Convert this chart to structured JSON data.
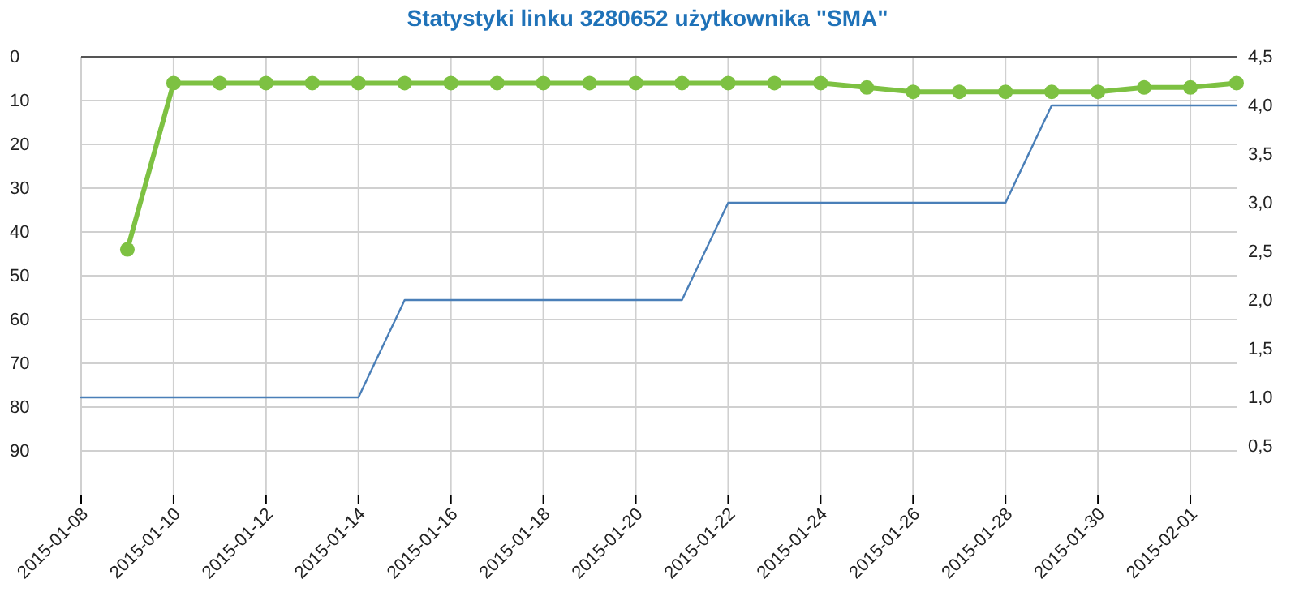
{
  "chart_data": {
    "type": "line",
    "title": "Statystyki linku 3280652 użytkownika \"SMA\"",
    "xlim": [
      "2015-01-08",
      "2015-02-02"
    ],
    "xticks": [
      "2015-01-08",
      "2015-01-10",
      "2015-01-12",
      "2015-01-14",
      "2015-01-16",
      "2015-01-18",
      "2015-01-20",
      "2015-01-22",
      "2015-01-24",
      "2015-01-26",
      "2015-01-28",
      "2015-01-30",
      "2015-02-01"
    ],
    "ylim": [
      100,
      0
    ],
    "yticks": [
      0,
      10,
      20,
      30,
      40,
      50,
      60,
      70,
      80,
      90
    ],
    "y2lim": [
      0,
      4.5
    ],
    "y2ticks": [
      {
        "value": 0.5,
        "label": "0,5"
      },
      {
        "value": 1,
        "label": "1,0"
      },
      {
        "value": 1.5,
        "label": "1,5"
      },
      {
        "value": 2,
        "label": "2,0"
      },
      {
        "value": 2.5,
        "label": "2,5"
      },
      {
        "value": 3,
        "label": "3,0"
      },
      {
        "value": 3.5,
        "label": "3,5"
      },
      {
        "value": 4,
        "label": "4,0"
      },
      {
        "value": 4.5,
        "label": "4,5"
      }
    ],
    "grid": true,
    "series": [
      {
        "color": "#4a7fb8",
        "axis": "y2",
        "marker": "none",
        "x": [
          "2015-01-08",
          "2015-01-09",
          "2015-01-10",
          "2015-01-11",
          "2015-01-12",
          "2015-01-13",
          "2015-01-14",
          "2015-01-15",
          "2015-01-16",
          "2015-01-17",
          "2015-01-18",
          "2015-01-19",
          "2015-01-20",
          "2015-01-21",
          "2015-01-22",
          "2015-01-23",
          "2015-01-24",
          "2015-01-25",
          "2015-01-26",
          "2015-01-27",
          "2015-01-28",
          "2015-01-29",
          "2015-01-30",
          "2015-01-31",
          "2015-02-01",
          "2015-02-02"
        ],
        "values": [
          1,
          1,
          1,
          1,
          1,
          1,
          1,
          2,
          2,
          2,
          2,
          2,
          2,
          2,
          3,
          3,
          3,
          3,
          3,
          3,
          3,
          4,
          4,
          4,
          4,
          4
        ]
      },
      {
        "color": "#7dc142",
        "axis": "y",
        "marker": "circle",
        "x": [
          "2015-01-09",
          "2015-01-10",
          "2015-01-11",
          "2015-01-12",
          "2015-01-13",
          "2015-01-14",
          "2015-01-15",
          "2015-01-16",
          "2015-01-17",
          "2015-01-18",
          "2015-01-19",
          "2015-01-20",
          "2015-01-21",
          "2015-01-22",
          "2015-01-23",
          "2015-01-24",
          "2015-01-25",
          "2015-01-26",
          "2015-01-27",
          "2015-01-28",
          "2015-01-29",
          "2015-01-30",
          "2015-01-31",
          "2015-02-01",
          "2015-02-02"
        ],
        "values": [
          44,
          6,
          6,
          6,
          6,
          6,
          6,
          6,
          6,
          6,
          6,
          6,
          6,
          6,
          6,
          6,
          7,
          8,
          8,
          8,
          8,
          8,
          7,
          7,
          6
        ]
      }
    ]
  }
}
